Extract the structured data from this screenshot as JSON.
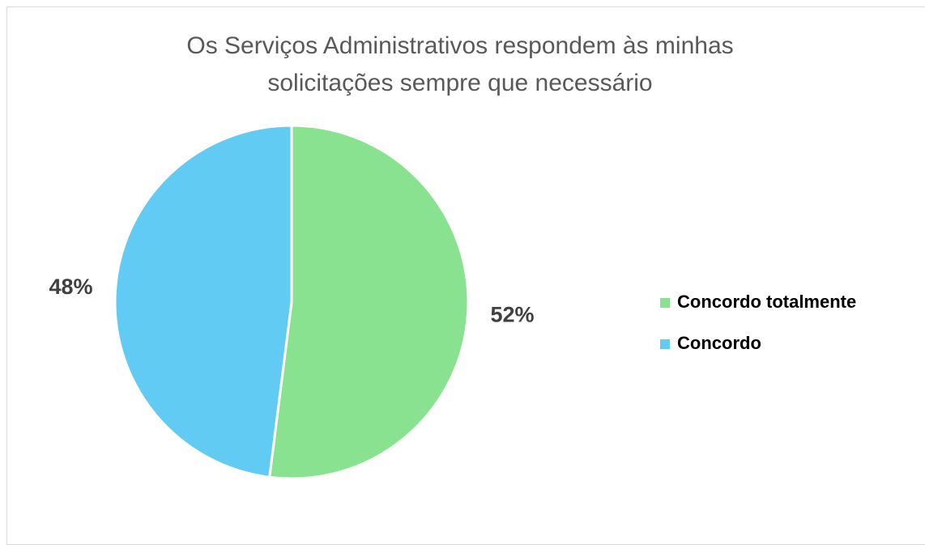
{
  "chart_data": {
    "type": "pie",
    "title": "Os Serviços Administrativos respondem às minhas solicitações sempre que necessário",
    "categories": [
      "Concordo totalmente",
      "Concordo"
    ],
    "values": [
      52,
      48
    ],
    "value_labels": [
      "52%",
      "48%"
    ],
    "colors": [
      "#88e28f",
      "#61cbf3"
    ],
    "legend": "right"
  }
}
